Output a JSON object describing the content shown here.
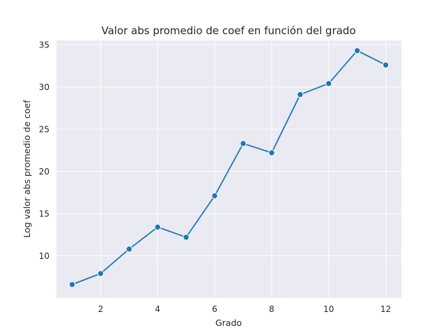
{
  "chart_data": {
    "type": "line",
    "title": "Valor abs promedio de coef en función del grado",
    "xlabel": "Grado",
    "ylabel": "Log valor abs promedio de coef",
    "x": [
      1,
      2,
      3,
      4,
      5,
      6,
      7,
      8,
      9,
      10,
      11,
      12
    ],
    "series": [
      {
        "values": [
          6.6,
          7.9,
          10.8,
          13.4,
          12.2,
          17.1,
          23.3,
          22.2,
          29.1,
          30.4,
          34.3,
          32.6
        ]
      }
    ],
    "xlim": [
      0.45,
      12.55
    ],
    "ylim": [
      5.0,
      35.5
    ],
    "xticks": [
      2,
      4,
      6,
      8,
      10,
      12
    ],
    "yticks": [
      10,
      15,
      20,
      25,
      30,
      35
    ],
    "grid": true,
    "colors": {
      "line": "#1f77b4",
      "marker_edge": "#ffffff",
      "plot_bg": "#eaeaf2",
      "grid": "#ffffff"
    }
  }
}
